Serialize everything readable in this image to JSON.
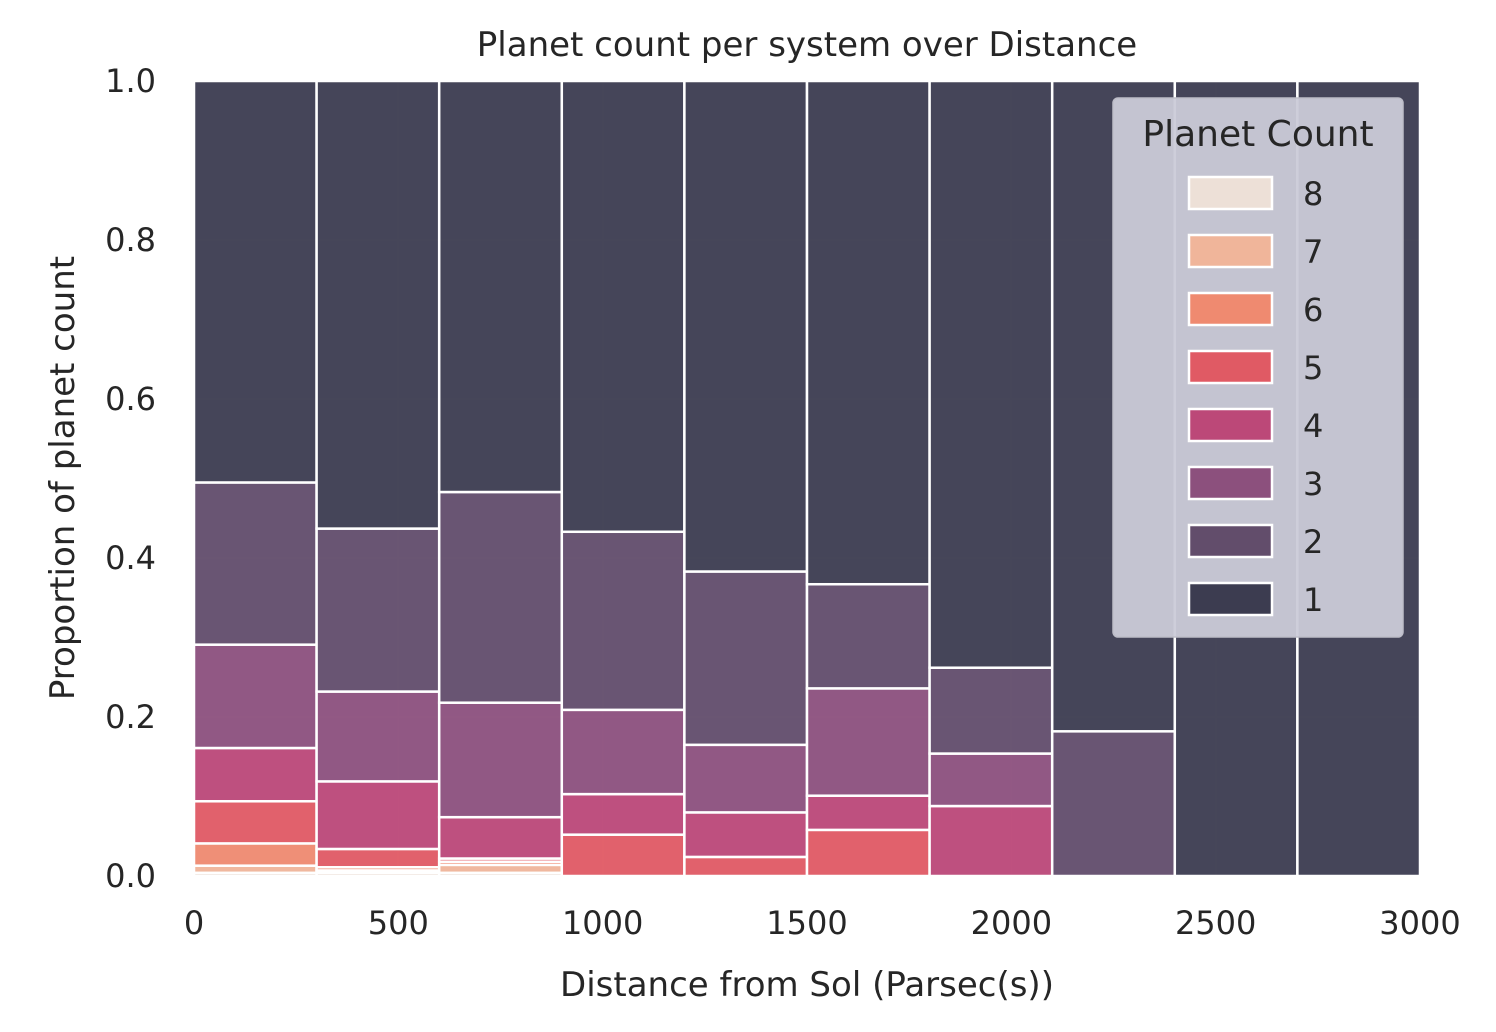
{
  "chart_data": {
    "type": "bar",
    "stacking": "fill",
    "title": "Planet count per system over Distance",
    "xlabel": "Distance from Sol (Parsec(s))",
    "ylabel": "Proportion of planet count",
    "xlim": [
      0,
      3000
    ],
    "ylim": [
      0,
      1
    ],
    "xticks": [
      "0",
      "500",
      "1000",
      "1500",
      "2000",
      "2500",
      "3000"
    ],
    "yticks": [
      "0.0",
      "0.2",
      "0.4",
      "0.6",
      "0.8",
      "1.0"
    ],
    "grid": true,
    "legend": {
      "title": "Planet Count",
      "placement": "top-right"
    },
    "bin_edges": [
      0,
      300,
      600,
      900,
      1200,
      1500,
      1800,
      2100,
      2400,
      2700,
      3000
    ],
    "series": [
      {
        "name": "1",
        "color": "#3c3c50",
        "values": [
          0.505,
          0.563,
          0.517,
          0.567,
          0.617,
          0.633,
          0.738,
          0.818,
          1.0,
          1.0
        ]
      },
      {
        "name": "2",
        "color": "#624d6b",
        "values": [
          0.204,
          0.205,
          0.265,
          0.224,
          0.218,
          0.131,
          0.108,
          0.182,
          0.0,
          0.0
        ]
      },
      {
        "name": "3",
        "color": "#8c507d",
        "values": [
          0.13,
          0.113,
          0.144,
          0.106,
          0.085,
          0.135,
          0.066,
          0.0,
          0.0,
          0.0
        ]
      },
      {
        "name": "4",
        "color": "#bc4878",
        "values": [
          0.067,
          0.085,
          0.052,
          0.051,
          0.056,
          0.043,
          0.088,
          0.0,
          0.0,
          0.0
        ]
      },
      {
        "name": "5",
        "color": "#e05a64",
        "values": [
          0.053,
          0.023,
          0.004,
          0.052,
          0.024,
          0.058,
          0.0,
          0.0,
          0.0,
          0.0
        ]
      },
      {
        "name": "6",
        "color": "#ef8a70",
        "values": [
          0.028,
          0.004,
          0.004,
          0.0,
          0.0,
          0.0,
          0.0,
          0.0,
          0.0,
          0.0
        ]
      },
      {
        "name": "7",
        "color": "#f0b59a",
        "values": [
          0.009,
          0.003,
          0.01,
          0.0,
          0.0,
          0.0,
          0.0,
          0.0,
          0.0,
          0.0
        ]
      },
      {
        "name": "8",
        "color": "#ede0d7",
        "values": [
          0.004,
          0.004,
          0.004,
          0.0,
          0.0,
          0.0,
          0.0,
          0.0,
          0.0,
          0.0
        ]
      }
    ]
  },
  "colors": {
    "plot_background": "#eaeaf2",
    "grid": "#ffffff",
    "bar_edge": "#ffffff",
    "legend_background": "#cbcbd8"
  }
}
